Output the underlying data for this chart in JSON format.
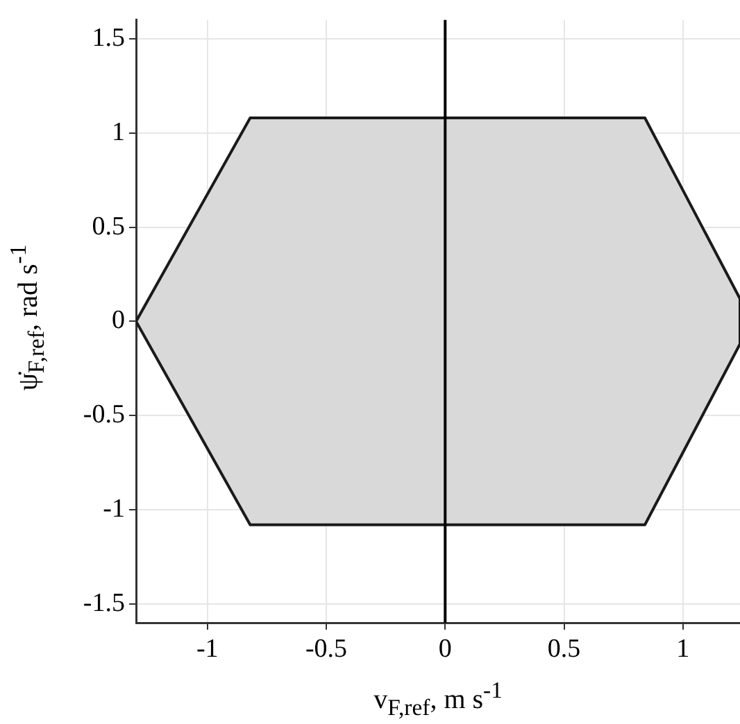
{
  "chart_data": {
    "type": "area",
    "xlabel": "v$_{F,ref}$, m s$^{-1}$",
    "ylabel": "ψ̇$_{F,ref}$, rad s$^{-1}$",
    "series": [
      {
        "color": "#1a1a1a",
        "x": [
          -1.3,
          -0.82,
          0.84,
          1.24,
          1.24,
          0.84,
          -0.82,
          -1.3
        ],
        "values": [
          0,
          1.08,
          1.08,
          0.12,
          -0.12,
          -1.08,
          -1.08,
          0
        ]
      }
    ],
    "xlim": [
      -1.3,
      1.24
    ],
    "xticks": [
      -1,
      -0.5,
      0,
      0.5,
      1
    ],
    "ylim": [
      -1.6,
      1.6
    ],
    "yticks": [
      -1.5,
      -1,
      -0.5,
      0,
      0.5,
      1,
      1.5
    ],
    "grid": true,
    "ref_lines": [
      {
        "axis": "x",
        "value": 0,
        "color": "#000000"
      }
    ]
  }
}
